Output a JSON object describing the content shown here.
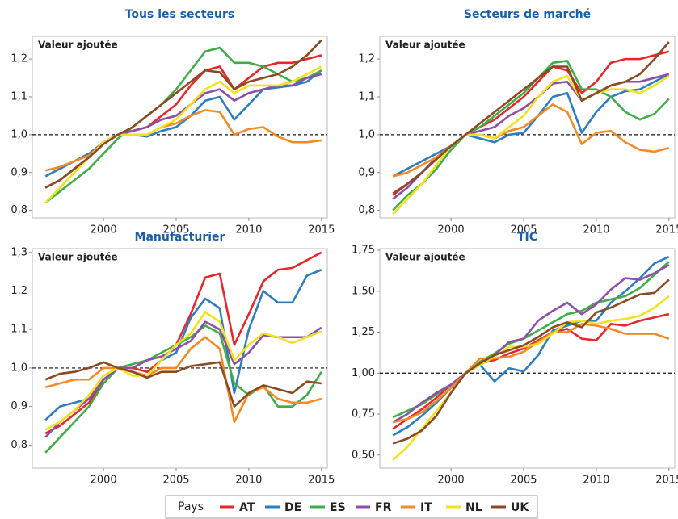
{
  "chart_data": [
    {
      "type": "line",
      "title": "Tous les secteurs",
      "ylabel": "Valeur ajoutée",
      "x": [
        1996,
        1997,
        1998,
        1999,
        2000,
        2001,
        2002,
        2003,
        2004,
        2005,
        2006,
        2007,
        2008,
        2009,
        2010,
        2011,
        2012,
        2013,
        2014,
        2015
      ],
      "xlim": [
        1995.1,
        2015.4
      ],
      "xticks": [
        2000,
        2005,
        2010,
        2015
      ],
      "ylim": [
        0.78,
        1.26
      ],
      "yticks": [
        {
          "value": 0.8,
          "label": "0,8"
        },
        {
          "value": 0.9,
          "label": "0,9"
        },
        {
          "value": 1.0,
          "label": "1,0"
        },
        {
          "value": 1.1,
          "label": "1,1"
        },
        {
          "value": 1.2,
          "label": "1,2"
        }
      ],
      "reference_line": 1,
      "series": [
        {
          "name": "AT",
          "color": "#e8262b",
          "values": [
            0.86,
            0.88,
            0.91,
            0.94,
            0.98,
            1.0,
            1.01,
            1.02,
            1.05,
            1.08,
            1.13,
            1.17,
            1.18,
            1.12,
            1.15,
            1.18,
            1.19,
            1.19,
            1.2,
            1.21
          ]
        },
        {
          "name": "DE",
          "color": "#2f7dc1",
          "values": [
            0.89,
            0.91,
            0.93,
            0.95,
            0.98,
            1.0,
            1.0,
            0.995,
            1.01,
            1.02,
            1.05,
            1.09,
            1.1,
            1.04,
            1.08,
            1.12,
            1.125,
            1.13,
            1.14,
            1.17
          ]
        },
        {
          "name": "ES",
          "color": "#3fae49",
          "values": [
            0.82,
            0.85,
            0.88,
            0.91,
            0.95,
            0.99,
            1.02,
            1.05,
            1.08,
            1.12,
            1.17,
            1.22,
            1.23,
            1.19,
            1.19,
            1.18,
            1.16,
            1.14,
            1.15,
            1.17
          ]
        },
        {
          "name": "FR",
          "color": "#8e4fa8",
          "values": [
            0.86,
            0.88,
            0.91,
            0.94,
            0.98,
            1.0,
            1.01,
            1.02,
            1.04,
            1.05,
            1.08,
            1.11,
            1.12,
            1.09,
            1.11,
            1.12,
            1.13,
            1.13,
            1.15,
            1.16
          ]
        },
        {
          "name": "IT",
          "color": "#f58a24",
          "values": [
            0.905,
            0.915,
            0.93,
            0.945,
            0.98,
            1.0,
            1.0,
            1.0,
            1.02,
            1.03,
            1.05,
            1.065,
            1.06,
            1.0,
            1.015,
            1.02,
            0.995,
            0.98,
            0.98,
            0.985
          ]
        },
        {
          "name": "NL",
          "color": "#f2e21c",
          "values": [
            0.82,
            0.86,
            0.9,
            0.94,
            0.98,
            1.0,
            1.0,
            1.0,
            1.02,
            1.04,
            1.08,
            1.12,
            1.14,
            1.11,
            1.13,
            1.13,
            1.13,
            1.14,
            1.16,
            1.18
          ]
        },
        {
          "name": "UK",
          "color": "#8b4a22",
          "values": [
            0.86,
            0.88,
            0.91,
            0.94,
            0.975,
            1.0,
            1.02,
            1.05,
            1.08,
            1.11,
            1.14,
            1.17,
            1.165,
            1.12,
            1.14,
            1.15,
            1.16,
            1.18,
            1.21,
            1.25
          ]
        }
      ]
    },
    {
      "type": "line",
      "title": "Secteurs de marché",
      "ylabel": "Valeur ajoutée",
      "x": [
        1996,
        1997,
        1998,
        1999,
        2000,
        2001,
        2002,
        2003,
        2004,
        2005,
        2006,
        2007,
        2008,
        2009,
        2010,
        2011,
        2012,
        2013,
        2014,
        2015
      ],
      "xlim": [
        1995.1,
        2015.4
      ],
      "xticks": [
        2000,
        2005,
        2010,
        2015
      ],
      "ylim": [
        0.78,
        1.26
      ],
      "yticks": [
        {
          "value": 0.8,
          "label": "0,8"
        },
        {
          "value": 0.9,
          "label": "0,9"
        },
        {
          "value": 1.0,
          "label": "1,0"
        },
        {
          "value": 1.1,
          "label": "1,1"
        },
        {
          "value": 1.2,
          "label": "1,2"
        }
      ],
      "reference_line": 1,
      "series": [
        {
          "name": "AT",
          "color": "#e8262b",
          "values": [
            0.84,
            0.87,
            0.9,
            0.94,
            0.97,
            1.0,
            1.02,
            1.04,
            1.07,
            1.1,
            1.14,
            1.18,
            1.17,
            1.11,
            1.14,
            1.19,
            1.2,
            1.2,
            1.21,
            1.22
          ]
        },
        {
          "name": "DE",
          "color": "#2f7dc1",
          "values": [
            0.89,
            0.91,
            0.93,
            0.95,
            0.97,
            1.0,
            0.99,
            0.98,
            1.0,
            1.005,
            1.05,
            1.1,
            1.11,
            1.005,
            1.06,
            1.1,
            1.115,
            1.12,
            1.14,
            1.16
          ]
        },
        {
          "name": "ES",
          "color": "#3fae49",
          "values": [
            0.8,
            0.84,
            0.87,
            0.91,
            0.96,
            1.0,
            1.02,
            1.05,
            1.08,
            1.11,
            1.15,
            1.19,
            1.195,
            1.12,
            1.12,
            1.1,
            1.06,
            1.04,
            1.055,
            1.095
          ]
        },
        {
          "name": "FR",
          "color": "#8e4fa8",
          "values": [
            0.83,
            0.86,
            0.9,
            0.94,
            0.97,
            1.0,
            1.01,
            1.02,
            1.05,
            1.07,
            1.1,
            1.135,
            1.14,
            1.09,
            1.11,
            1.13,
            1.14,
            1.14,
            1.15,
            1.16
          ]
        },
        {
          "name": "IT",
          "color": "#f58a24",
          "values": [
            0.89,
            0.9,
            0.92,
            0.94,
            0.97,
            1.0,
            1.0,
            0.99,
            1.01,
            1.02,
            1.05,
            1.08,
            1.06,
            0.975,
            1.005,
            1.01,
            0.98,
            0.96,
            0.955,
            0.965
          ]
        },
        {
          "name": "NL",
          "color": "#f2e21c",
          "values": [
            0.79,
            0.83,
            0.87,
            0.92,
            0.97,
            1.0,
            1.0,
            0.99,
            1.02,
            1.05,
            1.1,
            1.14,
            1.155,
            1.09,
            1.11,
            1.12,
            1.12,
            1.11,
            1.13,
            1.155
          ]
        },
        {
          "name": "UK",
          "color": "#8b4a22",
          "values": [
            0.845,
            0.87,
            0.9,
            0.935,
            0.97,
            1.0,
            1.03,
            1.06,
            1.09,
            1.12,
            1.15,
            1.18,
            1.18,
            1.09,
            1.11,
            1.13,
            1.14,
            1.16,
            1.2,
            1.245
          ]
        }
      ]
    },
    {
      "type": "line",
      "title": "Manufacturier",
      "ylabel": "Valeur ajoutée",
      "x": [
        1996,
        1997,
        1998,
        1999,
        2000,
        2001,
        2002,
        2003,
        2004,
        2005,
        2006,
        2007,
        2008,
        2009,
        2010,
        2011,
        2012,
        2013,
        2014,
        2015
      ],
      "xlim": [
        1995.1,
        2015.4
      ],
      "xticks": [
        2000,
        2005,
        2010,
        2015
      ],
      "ylim": [
        0.74,
        1.31
      ],
      "yticks": [
        {
          "value": 0.8,
          "label": "0,8"
        },
        {
          "value": 0.9,
          "label": "0,9"
        },
        {
          "value": 1.0,
          "label": "1,0"
        },
        {
          "value": 1.1,
          "label": "1,1"
        },
        {
          "value": 1.2,
          "label": "1,2"
        },
        {
          "value": 1.3,
          "label": "1,3"
        }
      ],
      "reference_line": 1,
      "series": [
        {
          "name": "AT",
          "color": "#e8262b",
          "values": [
            0.83,
            0.85,
            0.88,
            0.91,
            0.97,
            1.0,
            1.0,
            0.99,
            1.02,
            1.06,
            1.14,
            1.235,
            1.245,
            1.06,
            1.14,
            1.225,
            1.255,
            1.26,
            1.28,
            1.3
          ]
        },
        {
          "name": "DE",
          "color": "#2f7dc1",
          "values": [
            0.865,
            0.9,
            0.91,
            0.92,
            0.97,
            1.0,
            0.99,
            0.98,
            1.02,
            1.04,
            1.13,
            1.18,
            1.155,
            0.935,
            1.1,
            1.2,
            1.17,
            1.17,
            1.24,
            1.255
          ]
        },
        {
          "name": "ES",
          "color": "#3fae49",
          "values": [
            0.78,
            0.82,
            0.86,
            0.9,
            0.96,
            1.0,
            1.01,
            1.02,
            1.04,
            1.06,
            1.08,
            1.11,
            1.09,
            0.96,
            0.93,
            0.955,
            0.9,
            0.9,
            0.93,
            0.99
          ]
        },
        {
          "name": "FR",
          "color": "#8e4fa8",
          "values": [
            0.82,
            0.86,
            0.89,
            0.92,
            0.97,
            1.0,
            1.0,
            1.02,
            1.03,
            1.05,
            1.07,
            1.12,
            1.1,
            1.01,
            1.04,
            1.085,
            1.08,
            1.08,
            1.08,
            1.105
          ]
        },
        {
          "name": "IT",
          "color": "#f58a24",
          "values": [
            0.95,
            0.96,
            0.97,
            0.97,
            1.0,
            1.0,
            0.99,
            0.98,
            1.0,
            1.0,
            1.05,
            1.08,
            1.05,
            0.86,
            0.935,
            0.95,
            0.92,
            0.91,
            0.91,
            0.92
          ]
        },
        {
          "name": "NL",
          "color": "#f2e21c",
          "values": [
            0.84,
            0.86,
            0.89,
            0.93,
            0.98,
            1.0,
            0.98,
            0.98,
            1.02,
            1.06,
            1.09,
            1.145,
            1.12,
            1.02,
            1.06,
            1.09,
            1.08,
            1.065,
            1.08,
            1.095
          ]
        },
        {
          "name": "UK",
          "color": "#8b4a22",
          "values": [
            0.97,
            0.985,
            0.99,
            1.0,
            1.015,
            1.0,
            0.99,
            0.975,
            0.99,
            0.99,
            1.005,
            1.01,
            1.015,
            0.9,
            0.935,
            0.955,
            0.945,
            0.935,
            0.965,
            0.96
          ]
        }
      ]
    },
    {
      "type": "line",
      "title": "TIC",
      "ylabel": "Valeur ajoutée",
      "x": [
        1996,
        1997,
        1998,
        1999,
        2000,
        2001,
        2002,
        2003,
        2004,
        2005,
        2006,
        2007,
        2008,
        2009,
        2010,
        2011,
        2012,
        2013,
        2014,
        2015
      ],
      "xlim": [
        1995.1,
        2015.4
      ],
      "xticks": [
        2000,
        2005,
        2010,
        2015
      ],
      "ylim": [
        0.42,
        1.76
      ],
      "yticks": [
        {
          "value": 0.5,
          "label": "0,50"
        },
        {
          "value": 0.75,
          "label": "0,75"
        },
        {
          "value": 1.0,
          "label": "1,00"
        },
        {
          "value": 1.25,
          "label": "1,25"
        },
        {
          "value": 1.5,
          "label": "1,50"
        },
        {
          "value": 1.75,
          "label": "1,75"
        }
      ],
      "reference_line": 1,
      "series": [
        {
          "name": "AT",
          "color": "#e8262b",
          "values": [
            0.66,
            0.72,
            0.78,
            0.85,
            0.93,
            1.0,
            1.06,
            1.08,
            1.12,
            1.15,
            1.2,
            1.25,
            1.27,
            1.21,
            1.2,
            1.3,
            1.29,
            1.32,
            1.34,
            1.36
          ]
        },
        {
          "name": "DE",
          "color": "#2f7dc1",
          "values": [
            0.62,
            0.67,
            0.74,
            0.82,
            0.91,
            1.0,
            1.05,
            0.95,
            1.03,
            1.01,
            1.11,
            1.26,
            1.29,
            1.32,
            1.32,
            1.43,
            1.5,
            1.58,
            1.67,
            1.71
          ]
        },
        {
          "name": "ES",
          "color": "#3fae49",
          "values": [
            0.73,
            0.77,
            0.81,
            0.87,
            0.93,
            1.0,
            1.07,
            1.12,
            1.18,
            1.21,
            1.26,
            1.31,
            1.36,
            1.38,
            1.43,
            1.45,
            1.47,
            1.52,
            1.6,
            1.68
          ]
        },
        {
          "name": "FR",
          "color": "#8e4fa8",
          "values": [
            0.7,
            0.75,
            0.82,
            0.88,
            0.93,
            1.0,
            1.05,
            1.11,
            1.19,
            1.21,
            1.32,
            1.38,
            1.43,
            1.36,
            1.42,
            1.51,
            1.58,
            1.57,
            1.61,
            1.66
          ]
        },
        {
          "name": "IT",
          "color": "#f58a24",
          "values": [
            0.7,
            0.72,
            0.76,
            0.83,
            0.91,
            1.0,
            1.09,
            1.09,
            1.1,
            1.13,
            1.19,
            1.25,
            1.25,
            1.3,
            1.29,
            1.27,
            1.24,
            1.24,
            1.24,
            1.21
          ]
        },
        {
          "name": "NL",
          "color": "#f2e21c",
          "values": [
            0.47,
            0.55,
            0.66,
            0.77,
            0.88,
            1.0,
            1.05,
            1.1,
            1.16,
            1.16,
            1.18,
            1.24,
            1.31,
            1.32,
            1.3,
            1.32,
            1.33,
            1.35,
            1.4,
            1.47
          ]
        },
        {
          "name": "UK",
          "color": "#8b4a22",
          "values": [
            0.57,
            0.6,
            0.65,
            0.74,
            0.88,
            1.0,
            1.06,
            1.11,
            1.14,
            1.17,
            1.22,
            1.28,
            1.31,
            1.28,
            1.37,
            1.4,
            1.44,
            1.48,
            1.49,
            1.57
          ]
        }
      ]
    }
  ],
  "legend_title": "Pays"
}
